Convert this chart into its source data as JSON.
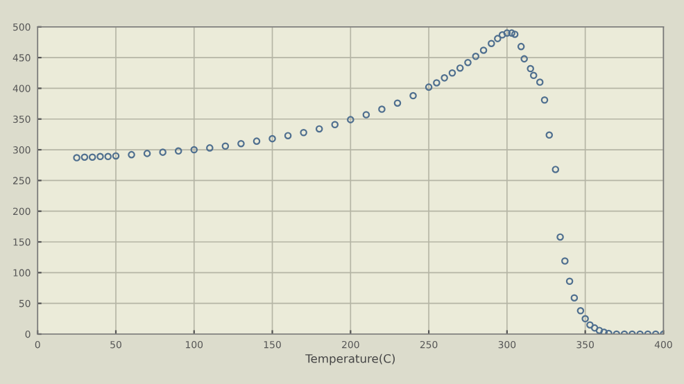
{
  "chart_data": {
    "type": "scatter",
    "xlabel": "Temperature(C)",
    "x": [
      25,
      30,
      35,
      40,
      45,
      50,
      60,
      70,
      80,
      90,
      100,
      110,
      120,
      130,
      140,
      150,
      160,
      170,
      180,
      190,
      200,
      210,
      220,
      230,
      240,
      250,
      255,
      260,
      265,
      270,
      275,
      280,
      285,
      290,
      294,
      297,
      300,
      303,
      305,
      309,
      311,
      315,
      317,
      321,
      324,
      327,
      331,
      334,
      337,
      340,
      343,
      347,
      350,
      353,
      356,
      359,
      362,
      365,
      370,
      375,
      380,
      385,
      390,
      395,
      400
    ],
    "series": [
      {
        "color": "#4f6f8f",
        "values": [
          287,
          288,
          288,
          289,
          289,
          290,
          292,
          294,
          296,
          298,
          300,
          303,
          306,
          310,
          314,
          318,
          323,
          328,
          334,
          341,
          349,
          357,
          366,
          376,
          388,
          402,
          409,
          417,
          425,
          433,
          442,
          452,
          462,
          473,
          481,
          487,
          490,
          490,
          488,
          468,
          448,
          432,
          421,
          410,
          381,
          324,
          268,
          158,
          119,
          86,
          59,
          38,
          25,
          15,
          10,
          6,
          3,
          1,
          0,
          0,
          0,
          0,
          0,
          0,
          0
        ]
      }
    ],
    "xlim": [
      0,
      400
    ],
    "ylim": [
      0,
      500
    ],
    "xticks": [
      0,
      50,
      100,
      150,
      200,
      250,
      300,
      350,
      400
    ],
    "yticks": [
      0,
      50,
      100,
      150,
      200,
      250,
      300,
      350,
      400,
      450,
      500
    ],
    "grid": true,
    "marker": "circle"
  }
}
